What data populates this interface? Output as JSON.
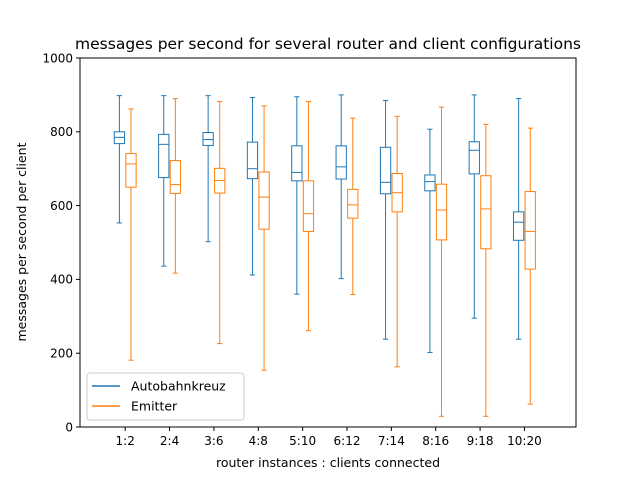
{
  "chart_data": {
    "type": "boxplot",
    "title": "messages per second for several router and client configurations",
    "xlabel": "router instances : clients connected",
    "ylabel": "messages per second per client",
    "ylim": [
      0,
      1000
    ],
    "yticks": [
      0,
      200,
      400,
      600,
      800,
      1000
    ],
    "categories": [
      "1:2",
      "2:4",
      "3:6",
      "4:8",
      "5:10",
      "6:12",
      "7:14",
      "8:16",
      "9:18",
      "10:20"
    ],
    "legend_position": "lower-left",
    "grid": false,
    "series": [
      {
        "name": "Autobahnkreuz",
        "color": "#1f77b4",
        "boxes": [
          {
            "whislo": 553,
            "q1": 768,
            "med": 785,
            "q3": 800,
            "whishi": 898
          },
          {
            "whislo": 436,
            "q1": 676,
            "med": 766,
            "q3": 793,
            "whishi": 898
          },
          {
            "whislo": 502,
            "q1": 763,
            "med": 779,
            "q3": 798,
            "whishi": 898
          },
          {
            "whislo": 412,
            "q1": 673,
            "med": 700,
            "q3": 772,
            "whishi": 893
          },
          {
            "whislo": 360,
            "q1": 667,
            "med": 690,
            "q3": 762,
            "whishi": 895
          },
          {
            "whislo": 402,
            "q1": 672,
            "med": 705,
            "q3": 762,
            "whishi": 900
          },
          {
            "whislo": 238,
            "q1": 632,
            "med": 663,
            "q3": 758,
            "whishi": 885
          },
          {
            "whislo": 202,
            "q1": 640,
            "med": 665,
            "q3": 683,
            "whishi": 807
          },
          {
            "whislo": 295,
            "q1": 686,
            "med": 750,
            "q3": 773,
            "whishi": 900
          },
          {
            "whislo": 238,
            "q1": 506,
            "med": 555,
            "q3": 583,
            "whishi": 890
          }
        ]
      },
      {
        "name": "Emitter",
        "color": "#ff7f0e",
        "boxes": [
          {
            "whislo": 181,
            "q1": 650,
            "med": 713,
            "q3": 741,
            "whishi": 862
          },
          {
            "whislo": 417,
            "q1": 633,
            "med": 657,
            "q3": 722,
            "whishi": 890
          },
          {
            "whislo": 226,
            "q1": 634,
            "med": 668,
            "q3": 701,
            "whishi": 882
          },
          {
            "whislo": 154,
            "q1": 536,
            "med": 623,
            "q3": 691,
            "whishi": 870
          },
          {
            "whislo": 261,
            "q1": 530,
            "med": 578,
            "q3": 667,
            "whishi": 882
          },
          {
            "whislo": 359,
            "q1": 566,
            "med": 602,
            "q3": 644,
            "whishi": 837
          },
          {
            "whislo": 163,
            "q1": 583,
            "med": 635,
            "q3": 687,
            "whishi": 842
          },
          {
            "whislo": 29,
            "q1": 507,
            "med": 588,
            "q3": 658,
            "whishi": 867
          },
          {
            "whislo": 29,
            "q1": 483,
            "med": 591,
            "q3": 681,
            "whishi": 820
          },
          {
            "whislo": 62,
            "q1": 428,
            "med": 530,
            "q3": 638,
            "whishi": 810
          }
        ]
      }
    ]
  }
}
